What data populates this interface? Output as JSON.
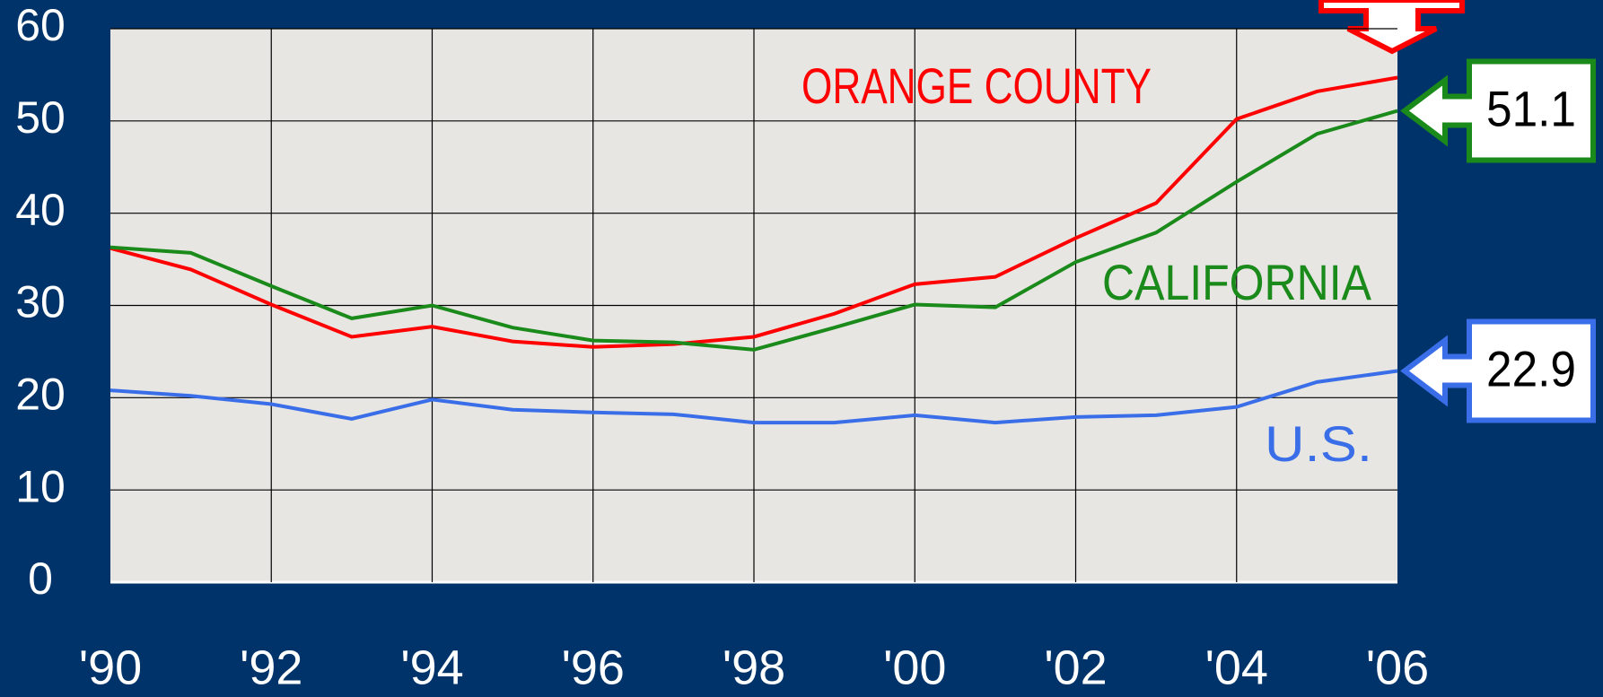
{
  "chart_data": {
    "type": "line",
    "x": [
      1990,
      1991,
      1992,
      1993,
      1994,
      1995,
      1996,
      1997,
      1998,
      1999,
      2000,
      2001,
      2002,
      2003,
      2004,
      2005,
      2006
    ],
    "series": [
      {
        "name": "ORANGE COUNTY",
        "color": "#ff0000",
        "values": [
          36.2,
          33.9,
          30.1,
          26.6,
          27.7,
          26.1,
          25.5,
          25.8,
          26.6,
          29.1,
          32.3,
          33.1,
          37.3,
          41.1,
          50.2,
          53.2,
          54.7
        ]
      },
      {
        "name": "CALIFORNIA",
        "color": "#1a8a1a",
        "values": [
          36.3,
          35.7,
          32.1,
          28.6,
          30.0,
          27.6,
          26.2,
          26.0,
          25.2,
          27.6,
          30.1,
          29.8,
          34.7,
          37.9,
          43.4,
          48.6,
          51.1
        ],
        "callout": true
      },
      {
        "name": "U.S.",
        "color": "#3a6ee8",
        "values": [
          20.8,
          20.2,
          19.3,
          17.7,
          19.8,
          18.7,
          18.4,
          18.2,
          17.3,
          17.3,
          18.1,
          17.3,
          17.9,
          18.1,
          19.0,
          21.7,
          22.9
        ],
        "callout": true
      }
    ],
    "xlim": [
      1990,
      2006
    ],
    "xticks": [
      {
        "value": 1990,
        "label": "'90"
      },
      {
        "value": 1992,
        "label": "'92"
      },
      {
        "value": 1994,
        "label": "'94"
      },
      {
        "value": 1996,
        "label": "'96"
      },
      {
        "value": 1998,
        "label": "'98"
      },
      {
        "value": 2000,
        "label": "'00"
      },
      {
        "value": 2002,
        "label": "'02"
      },
      {
        "value": 2004,
        "label": "'04"
      },
      {
        "value": 2006,
        "label": "'06"
      }
    ],
    "ylim": [
      0,
      60
    ],
    "yticks": [
      0,
      10,
      20,
      30,
      40,
      50,
      60
    ],
    "grid": true
  }
}
